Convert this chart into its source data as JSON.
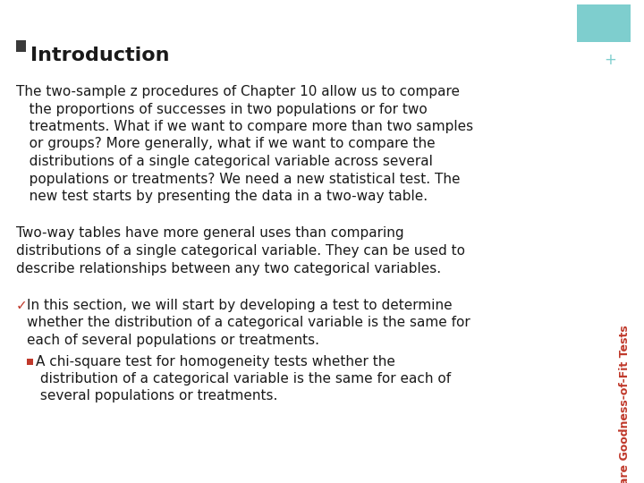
{
  "title": "Introduction",
  "title_marker_color": "#3a3a3a",
  "title_fontsize": 16,
  "background_color": "#ffffff",
  "paragraph1_line1": "The two-sample z procedures of Chapter 10 allow us to compare",
  "paragraph1_line2": "   the proportions of successes in two populations or for two",
  "paragraph1_line3": "   treatments. What if we want to compare more than two samples",
  "paragraph1_line4": "   or groups? More generally, what if we want to compare the",
  "paragraph1_line5": "   distributions of a single categorical variable across several",
  "paragraph1_line6": "   populations or treatments? We need a new statistical test. The",
  "paragraph1_line7": "   new test starts by presenting the data in a two-way table.",
  "paragraph2_line1": "Two-way tables have more general uses than comparing",
  "paragraph2_line2": "distributions of a single categorical variable. They can be used to",
  "paragraph2_line3": "describe relationships between any two categorical variables.",
  "paragraph3_line1": "In this section, we will start by developing a test to determine",
  "paragraph3_line2": "whether the distribution of a categorical variable is the same for",
  "paragraph3_line3": "each of several populations or treatments.",
  "paragraph4_line1": "A chi-square test for homogeneity tests whether the",
  "paragraph4_line2": " distribution of a categorical variable is the same for each of",
  "paragraph4_line3": " several populations or treatments.",
  "sidebar_text": "Chi-Square Goodness-of-Fit Tests",
  "sidebar_color": "#c0392b",
  "sidebar_box_color": "#7ecece",
  "plus_color": "#7ecece",
  "text_color": "#1a1a1a",
  "red_color": "#c0392b",
  "body_fontsize": 11.0,
  "sidebar_fontsize": 9.0
}
